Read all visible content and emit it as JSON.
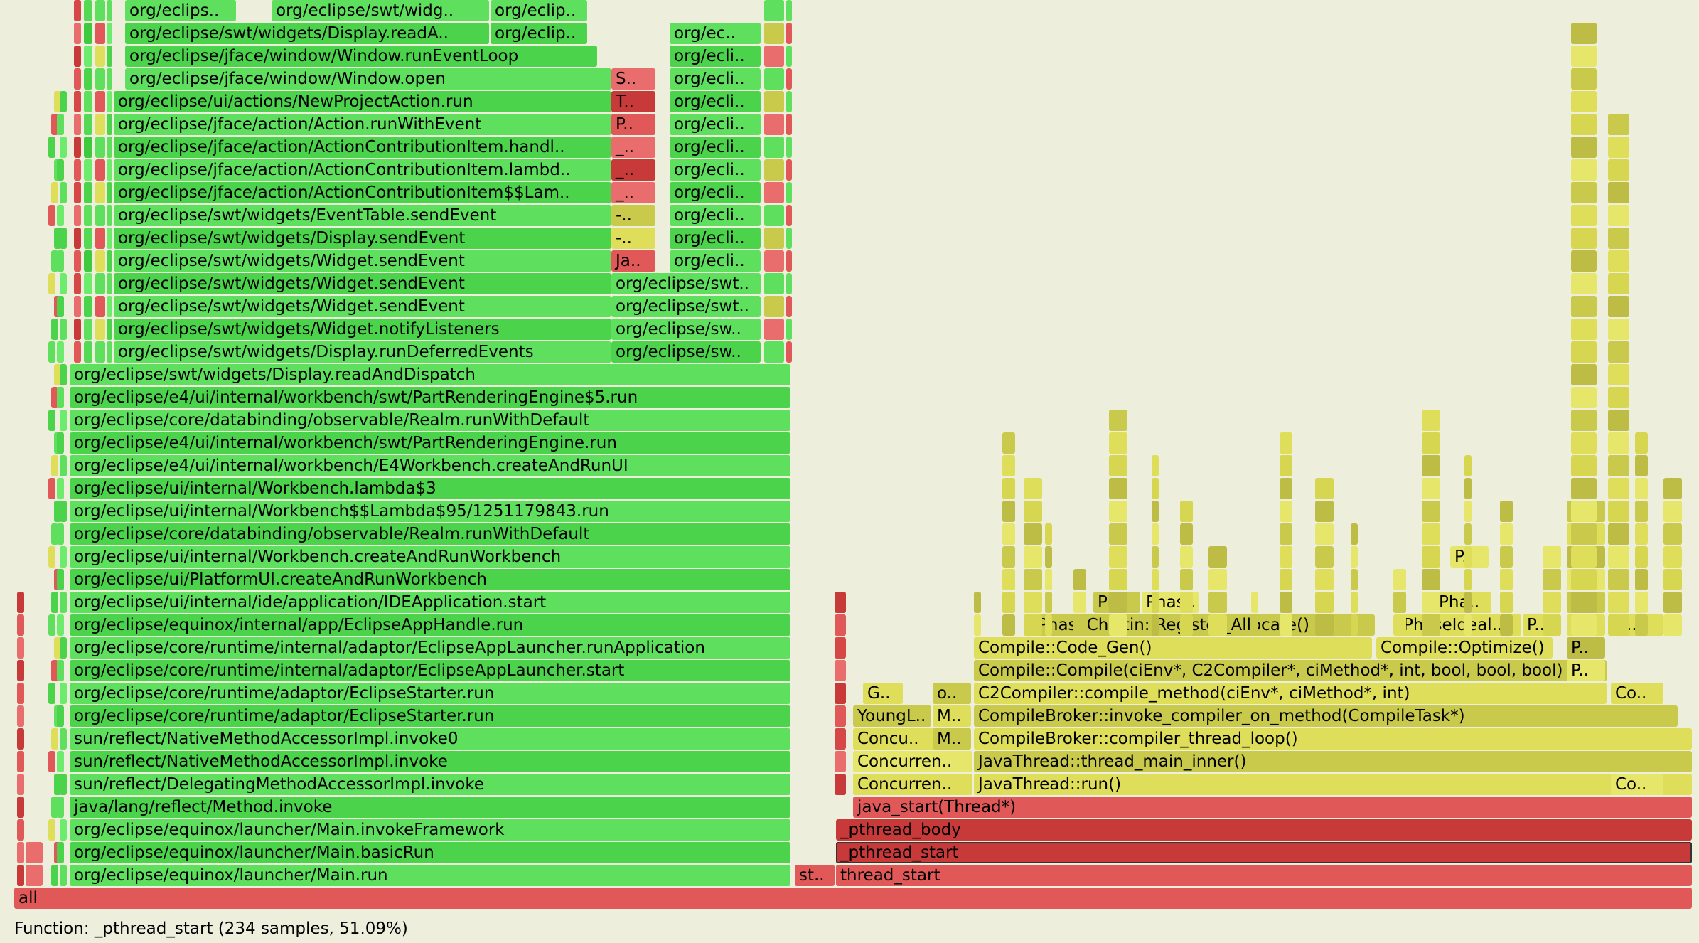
{
  "status": {
    "function_label": "Function:",
    "function_name": "_pthread_start",
    "samples_text": "(234 samples, 51.09%)"
  },
  "palette": {
    "green": [
      "#5ee05e",
      "#4cd34c",
      "#6ceb6c",
      "#3fc93f",
      "#55d955"
    ],
    "red": [
      "#e05858",
      "#c83a3a",
      "#ea6d6d",
      "#d64848"
    ],
    "yellow": [
      "#dede5a",
      "#c9c94c",
      "#e6e66a",
      "#bdbd45",
      "#d6d650"
    ]
  },
  "stacks": {
    "java": {
      "main": [
        "org/eclipse/equinox/launcher/Main.run",
        "org/eclipse/equinox/launcher/Main.basicRun",
        "org/eclipse/equinox/launcher/Main.invokeFramework",
        "java/lang/reflect/Method.invoke",
        "sun/reflect/DelegatingMethodAccessorImpl.invoke",
        "sun/reflect/NativeMethodAccessorImpl.invoke",
        "sun/reflect/NativeMethodAccessorImpl.invoke0",
        "org/eclipse/core/runtime/adaptor/EclipseStarter.run",
        "org/eclipse/core/runtime/adaptor/EclipseStarter.run",
        "org/eclipse/core/runtime/internal/adaptor/EclipseAppLauncher.start",
        "org/eclipse/core/runtime/internal/adaptor/EclipseAppLauncher.runApplication",
        "org/eclipse/equinox/internal/app/EclipseAppHandle.run",
        "org/eclipse/ui/internal/ide/application/IDEApplication.start",
        "org/eclipse/ui/PlatformUI.createAndRunWorkbench",
        "org/eclipse/ui/internal/Workbench.createAndRunWorkbench",
        "org/eclipse/core/databinding/observable/Realm.runWithDefault",
        "org/eclipse/ui/internal/Workbench$$Lambda$95/1251179843.run",
        "org/eclipse/ui/internal/Workbench.lambda$3",
        "org/eclipse/e4/ui/internal/workbench/E4Workbench.createAndRunUI",
        "org/eclipse/e4/ui/internal/workbench/swt/PartRenderingEngine.run",
        "org/eclipse/core/databinding/observable/Realm.runWithDefault",
        "org/eclipse/e4/ui/internal/workbench/swt/PartRenderingEngine$5.run",
        "org/eclipse/swt/widgets/Display.readAndDispatch"
      ],
      "events": [
        "org/eclipse/swt/widgets/Display.runDeferredEvents",
        "org/eclipse/swt/widgets/Widget.notifyListeners",
        "org/eclipse/swt/widgets/Widget.sendEvent",
        "org/eclipse/swt/widgets/Widget.sendEvent",
        "org/eclipse/swt/widgets/Widget.sendEvent",
        "org/eclipse/swt/widgets/Display.sendEvent",
        "org/eclipse/swt/widgets/EventTable.sendEvent",
        "org/eclipse/jface/action/ActionContributionItem$$Lam..",
        "org/eclipse/jface/action/ActionContributionItem.lambd..",
        "org/eclipse/jface/action/ActionContributionItem.handl..",
        "org/eclipse/jface/action/Action.runWithEvent",
        "org/eclipse/ui/actions/NewProjectAction.run"
      ],
      "window": [
        "org/eclipse/jface/window/Window.open",
        "org/eclipse/jface/window/Window.runEventLoop",
        "org/eclipse/swt/widgets/Display.readA..",
        "org/eclips.."
      ],
      "top_mid": [
        "org/eclip..",
        "org/eclip.."
      ],
      "top_right": "org/eclipse/swt/widg..",
      "col_swt": [
        "org/eclipse/sw..",
        "org/eclipse/sw..",
        "org/eclipse/swt.."
      ],
      "col_ecli": [
        "org/ecli..",
        "org/ecli..",
        "org/ecli..",
        "org/ecli..",
        "org/ecli..",
        "org/ecli..",
        "org/ecli..",
        "org/ecli..",
        "org/ecli..",
        "org/ecli..",
        "org/ec.."
      ],
      "mixed": [
        "Ja..",
        "-..",
        "-..",
        "_..",
        "_..",
        "_..",
        "P..",
        "T..",
        "S.."
      ]
    },
    "native": {
      "base": [
        "all",
        "st..",
        "thread_start",
        "_pthread_start",
        "_pthread_body",
        "java_start(Thread*)"
      ],
      "threads": [
        "JavaThread::run()",
        "JavaThread::thread_main_inner()",
        "CompileBroker::compiler_thread_loop()",
        "CompileBroker::invoke_compiler_on_method(CompileTask*)",
        "C2Compiler::compile_method(ciEnv*, ciMethod*, int)",
        "Compile::Compile(ciEnv*, C2Compiler*, ciMethod*, int, bool, bool, bool)",
        "Compile::Code_Gen()",
        "PhaseChaitin::Register_Allocate()",
        "Compile::Optimize()",
        "PhaseIdeal..",
        "Phas..",
        "Ph..",
        "Pha.."
      ],
      "gc": [
        "Concurren..",
        "Concu..",
        "YoungL..",
        "G..",
        "o..",
        "M..",
        "M.."
      ],
      "right_col": [
        "Co..",
        "Co..",
        "C..",
        "P..",
        "P..",
        "P..",
        "P..",
        "P..",
        "P..",
        "P..",
        "P.."
      ]
    }
  }
}
